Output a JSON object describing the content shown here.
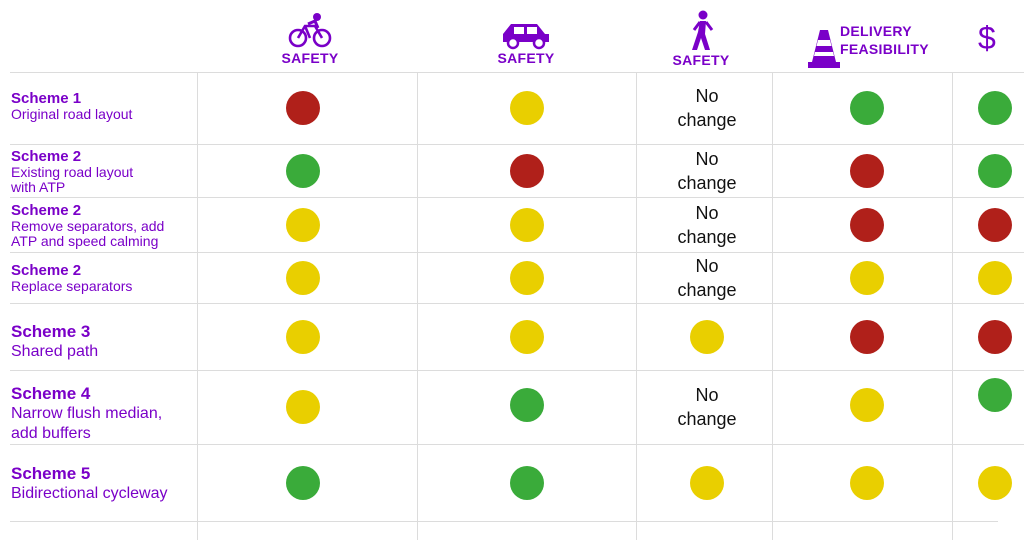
{
  "headers": {
    "bike": "SAFETY",
    "car": "SAFETY",
    "walk": "SAFETY",
    "delivery_line1": "DELIVERY",
    "delivery_line2": "FEASIBILITY",
    "cost_symbol": "$"
  },
  "icons": {
    "bike": "bicycle-icon",
    "car": "car-icon",
    "walk": "pedestrian-icon",
    "delivery": "traffic-cone-icon"
  },
  "colors": {
    "accent": "#7a00c8",
    "red": "#b0201a",
    "yellow": "#e9cf00",
    "green": "#3aab3a"
  },
  "rows": [
    {
      "name": "Scheme 1",
      "desc": "Original road layout"
    },
    {
      "name": "Scheme 2",
      "desc": "Existing road layout",
      "desc2": "with ATP"
    },
    {
      "name": "Scheme 2",
      "desc": "Remove separators, add",
      "desc2": "ATP and speed calming"
    },
    {
      "name": "Scheme 2",
      "desc": "Replace separators"
    },
    {
      "name": "Scheme 3",
      "desc": "Shared path"
    },
    {
      "name": "Scheme 4",
      "desc": "Narrow flush median,",
      "desc2": "add buffers"
    },
    {
      "name": "Scheme 5",
      "desc": "Bidirectional cycleway"
    }
  ],
  "ratings": [
    [
      "red",
      "yellow",
      "no_change",
      "green",
      "green"
    ],
    [
      "green",
      "red",
      "no_change",
      "red",
      "green"
    ],
    [
      "yellow",
      "yellow",
      "no_change",
      "red",
      "red"
    ],
    [
      "yellow",
      "yellow",
      "no_change",
      "yellow",
      "yellow"
    ],
    [
      "yellow",
      "yellow",
      "yellow",
      "red",
      "red"
    ],
    [
      "yellow",
      "green",
      "no_change",
      "yellow",
      "green"
    ],
    [
      "green",
      "green",
      "yellow",
      "yellow",
      "yellow"
    ]
  ],
  "no_change_line1": "No",
  "no_change_line2": "change"
}
